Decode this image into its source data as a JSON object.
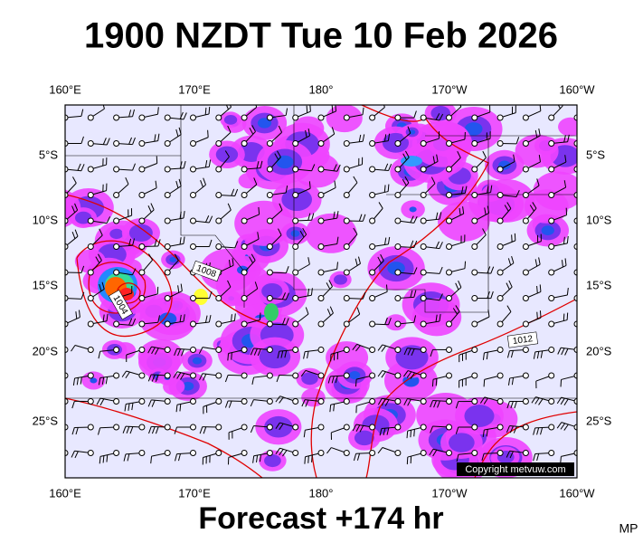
{
  "header": {
    "title": "1900 NZDT Tue 10 Feb 2026"
  },
  "map": {
    "lon_labels": [
      "160°E",
      "170°E",
      "180°",
      "170°W",
      "160°W"
    ],
    "lat_labels": [
      "5°S",
      "10°S",
      "15°S",
      "20°S",
      "25°S"
    ],
    "isobar_labels": [
      "1008",
      "1004",
      "1012"
    ],
    "copyright": "Copyright metvuw.com"
  },
  "footer": {
    "forecast": "Forecast +174 hr",
    "initials": "MP"
  }
}
